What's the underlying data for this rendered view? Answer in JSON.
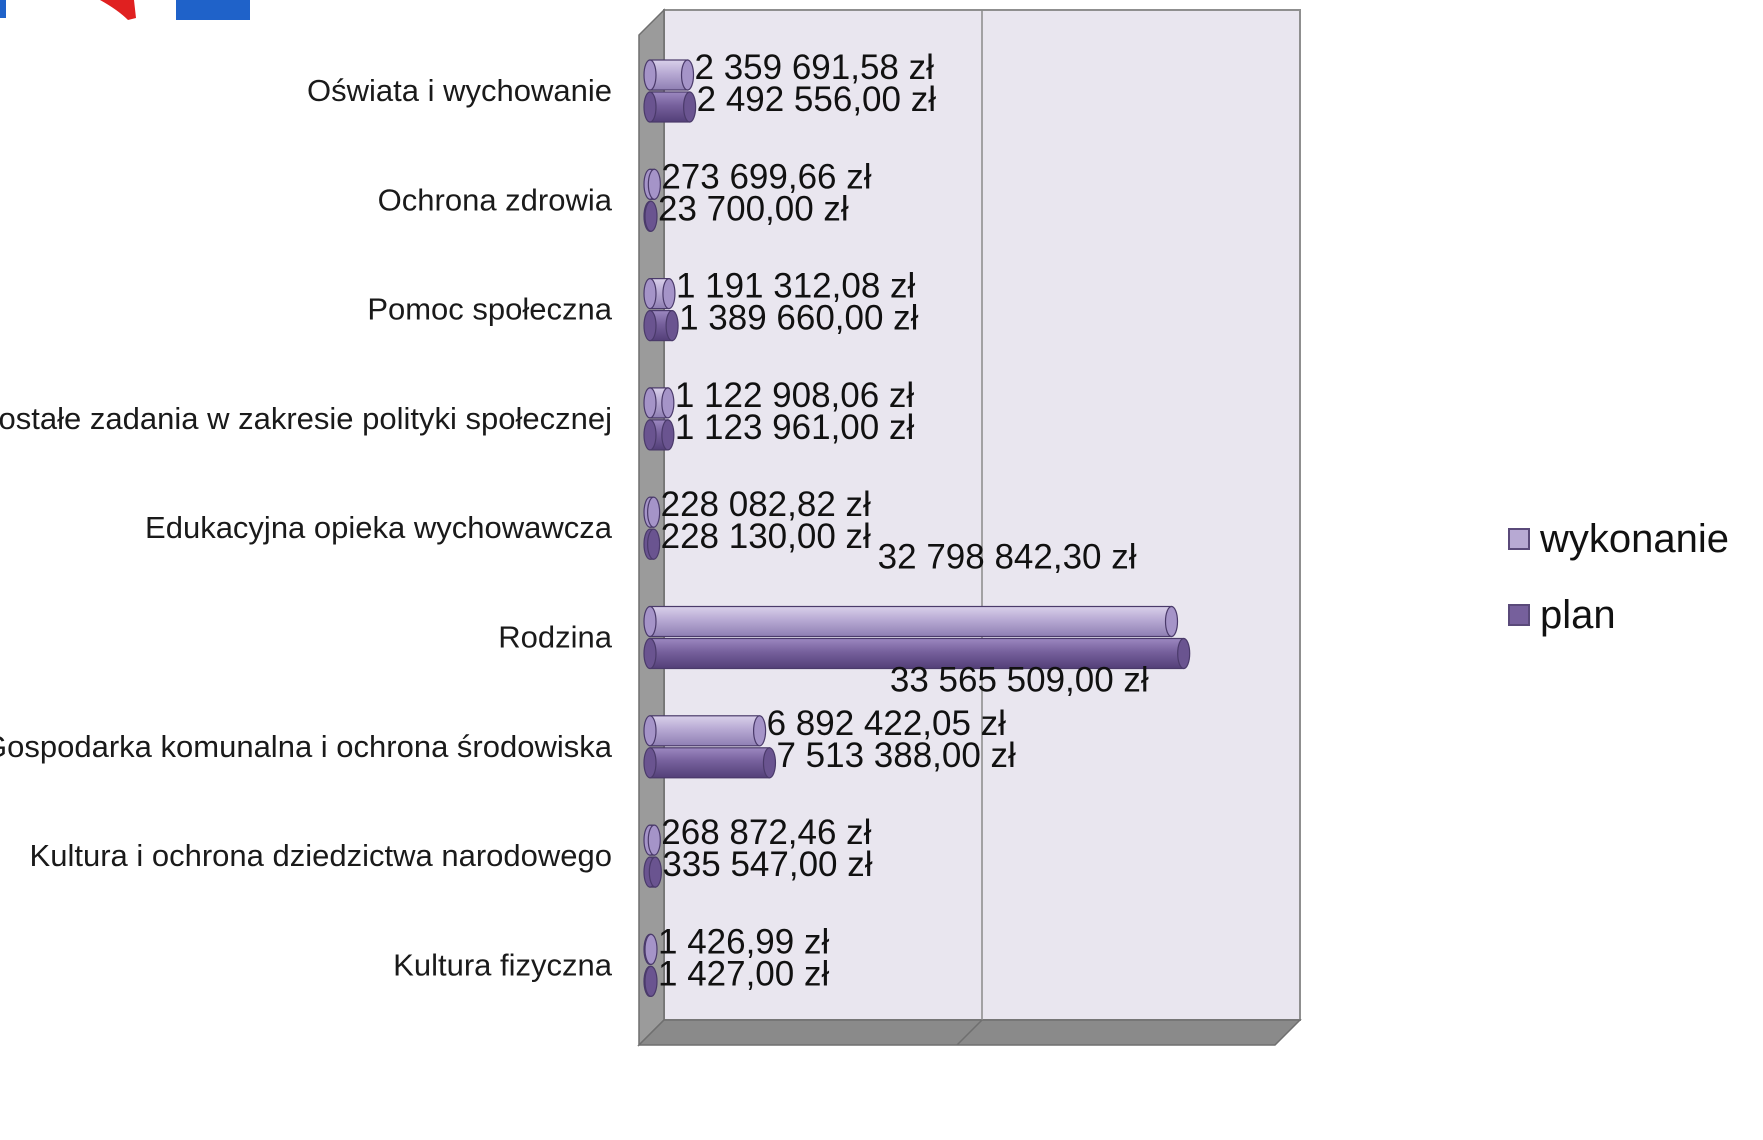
{
  "colors": {
    "wykonanie": "#b7a9d3",
    "plan": "#76609c",
    "plot_back": "#e9e6ef",
    "plot_side": "#9b9b9b",
    "plot_floor": "#8a8a8a",
    "logo_blue": "#1f62c9",
    "logo_red": "#e02020"
  },
  "chart_data": {
    "type": "bar",
    "orientation": "horizontal",
    "style": "3d-cylinder",
    "categories": [
      "Oświata i wychowanie",
      "Ochrona zdrowia",
      "Pomoc społeczna",
      "Pozostałe zadania w zakresie polityki społecznej",
      "Edukacyjna opieka wychowawcza",
      "Rodzina",
      "Gospodarka komunalna i ochrona środowiska",
      "Kultura i ochrona dziedzictwa narodowego",
      "Kultura fizyczna"
    ],
    "series": [
      {
        "name": "wykonanie",
        "values": [
          2359691.58,
          273699.66,
          1191312.08,
          1122908.06,
          228082.82,
          32798842.3,
          6892422.05,
          268872.46,
          1426.99
        ],
        "labels": [
          "2 359 691,58 zł",
          "273 699,66 zł",
          "1 191 312,08 zł",
          "1 122 908,06 zł",
          "228 082,82 zł",
          "32 798 842,30 zł",
          "6 892 422,05 zł",
          "268 872,46 zł",
          "1 426,99 zł"
        ]
      },
      {
        "name": "plan",
        "values": [
          2492556.0,
          23700.0,
          1389660.0,
          1123961.0,
          228130.0,
          33565509.0,
          7513388.0,
          335547.0,
          1427.0
        ],
        "labels": [
          "2 492 556,00 zł",
          "23 700,00 zł",
          "1 389 660,00 zł",
          "1 123 961,00 zł",
          "228 130,00 zł",
          "33 565 509,00 zł",
          "7 513 388,00 zł",
          "335 547,00 zł",
          "1 427,00 zł"
        ]
      }
    ],
    "xlim": [
      0,
      40000000
    ],
    "gridlines": true,
    "legend_position": "right"
  }
}
